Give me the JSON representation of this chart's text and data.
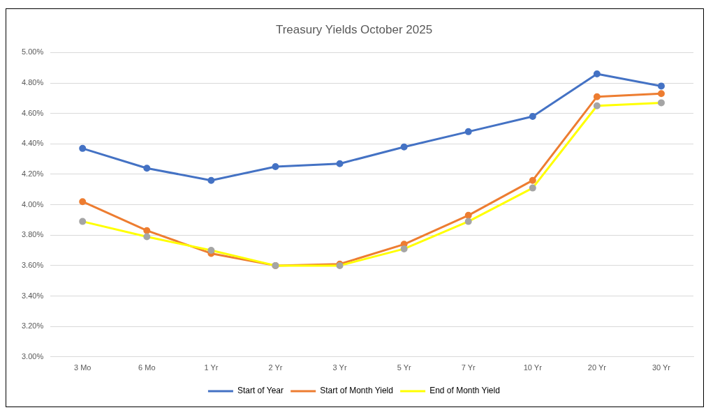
{
  "chart_data": {
    "type": "line",
    "title": "Treasury Yields October 2025",
    "categories": [
      "3 Mo",
      "6 Mo",
      "1 Yr",
      "2 Yr",
      "3 Yr",
      "5 Yr",
      "7 Yr",
      "10 Yr",
      "20 Yr",
      "30 Yr"
    ],
    "series": [
      {
        "name": "Start of Year",
        "color": "#4472c4",
        "values": [
          4.37,
          4.24,
          4.16,
          4.25,
          4.27,
          4.38,
          4.48,
          4.58,
          4.86,
          4.78
        ]
      },
      {
        "name": "Start of Month Yield",
        "color": "#ed7d31",
        "values": [
          4.02,
          3.83,
          3.68,
          3.6,
          3.61,
          3.74,
          3.93,
          4.16,
          4.71,
          4.73
        ]
      },
      {
        "name": "End of Month Yield",
        "color": "#ffff00",
        "colors": [
          "#a5a5a5",
          "#a5a5a5",
          "#a5a5a5",
          "#a5a5a5",
          "#a5a5a5",
          "#a5a5a5",
          "#a5a5a5",
          "#a5a5a5",
          "#a5a5a5",
          "#a5a5a5"
        ],
        "values": [
          3.89,
          3.79,
          3.7,
          3.6,
          3.6,
          3.71,
          3.89,
          4.11,
          4.65,
          4.67
        ]
      }
    ],
    "ylim": [
      3.0,
      5.0
    ],
    "yticks": [
      {
        "value": 3.0,
        "label": "3.00%"
      },
      {
        "value": 3.2,
        "label": "3.20%"
      },
      {
        "value": 3.4,
        "label": "3.40%"
      },
      {
        "value": 3.6,
        "label": "3.60%"
      },
      {
        "value": 3.8,
        "label": "3.80%"
      },
      {
        "value": 4.0,
        "label": "4.00%"
      },
      {
        "value": 4.2,
        "label": "4.20%"
      },
      {
        "value": 4.4,
        "label": "4.40%"
      },
      {
        "value": 4.6,
        "label": "4.60%"
      },
      {
        "value": 4.8,
        "label": "4.80%"
      },
      {
        "value": 5.0,
        "label": "5.00%"
      }
    ],
    "grid": "y",
    "legend": "bottom",
    "marker": "circle",
    "line_style": "solid"
  }
}
